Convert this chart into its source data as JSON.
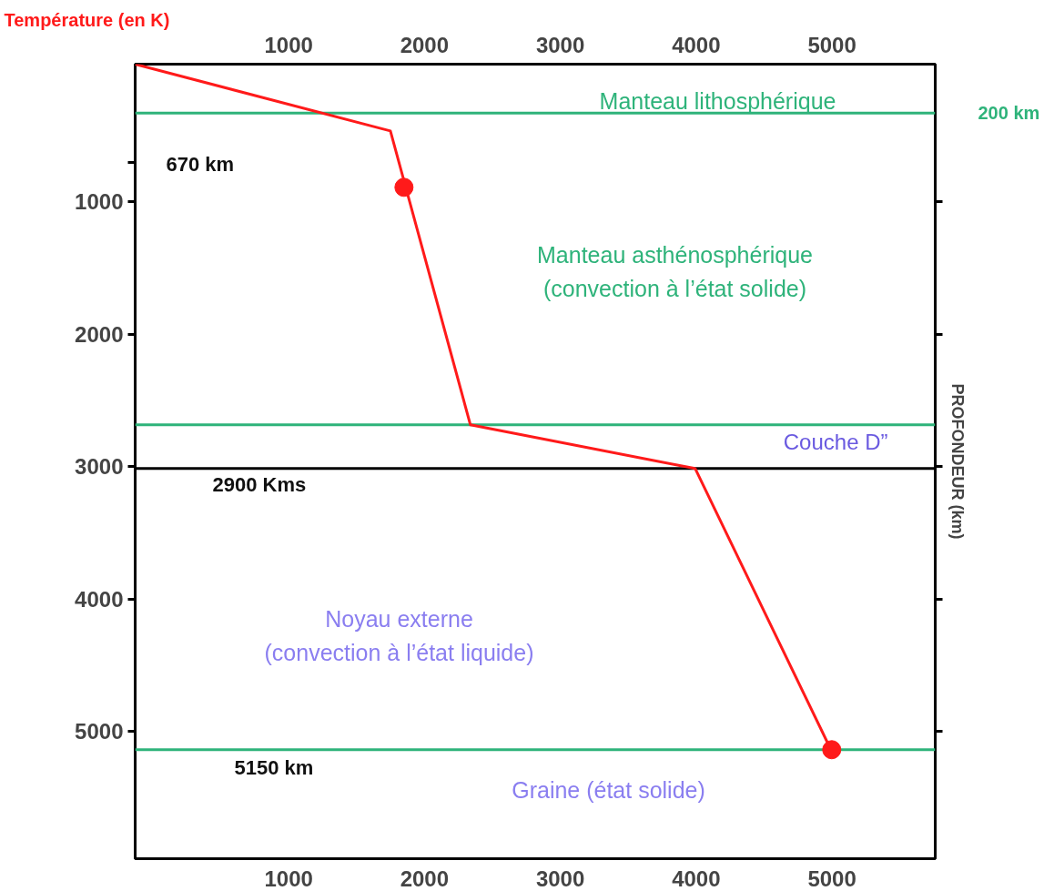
{
  "chart_data": {
    "type": "line",
    "xlabel": "Température (en K)",
    "ylabel": "PROFONDEUR (km)",
    "x": [
      -130,
      1749,
      2338,
      3993,
      4992
    ],
    "series": [
      {
        "color": "#ff1a1a",
        "values": [
          -40,
          464,
          2684,
          3014,
          5137
        ]
      },
      {
        "type": "scatter",
        "color": "#ff1a1a",
        "x": [
          1849,
          4998
        ],
        "values": [
          890,
          5137
        ]
      }
    ],
    "xlim": [
      -130,
      5760
    ],
    "xticks": [
      1000,
      2000,
      3000,
      4000,
      5000
    ],
    "x2lim": [
      -130,
      5760
    ],
    "x2ticks": [
      1000,
      2000,
      3000,
      4000,
      5000
    ],
    "ylim": [
      5960,
      -40
    ],
    "yticks": [
      {
        "value": 704,
        "label": null
      },
      1000,
      2000,
      3000,
      4000,
      5000
    ],
    "grid": false,
    "line_style": "solid",
    "ref_lines": [
      {
        "axis": "y",
        "value": 330,
        "color": "#2eb37a",
        "label": "200 km"
      },
      {
        "axis": "y",
        "value": 2684,
        "color": "#2eb37a",
        "label": "Couche D”"
      },
      {
        "axis": "y",
        "value": 3014,
        "color": "#000000",
        "label": "2900 Kms"
      },
      {
        "axis": "y",
        "value": 5137,
        "color": "#2eb37a",
        "label": "5150 km"
      }
    ],
    "annotations": [
      "Manteau lithosphérique",
      "670 km",
      "Manteau asthénosphérique",
      "(convection à l’état solide)",
      "Noyau externe",
      "(convection à l’état liquide)",
      "Graine (état solide)"
    ]
  }
}
